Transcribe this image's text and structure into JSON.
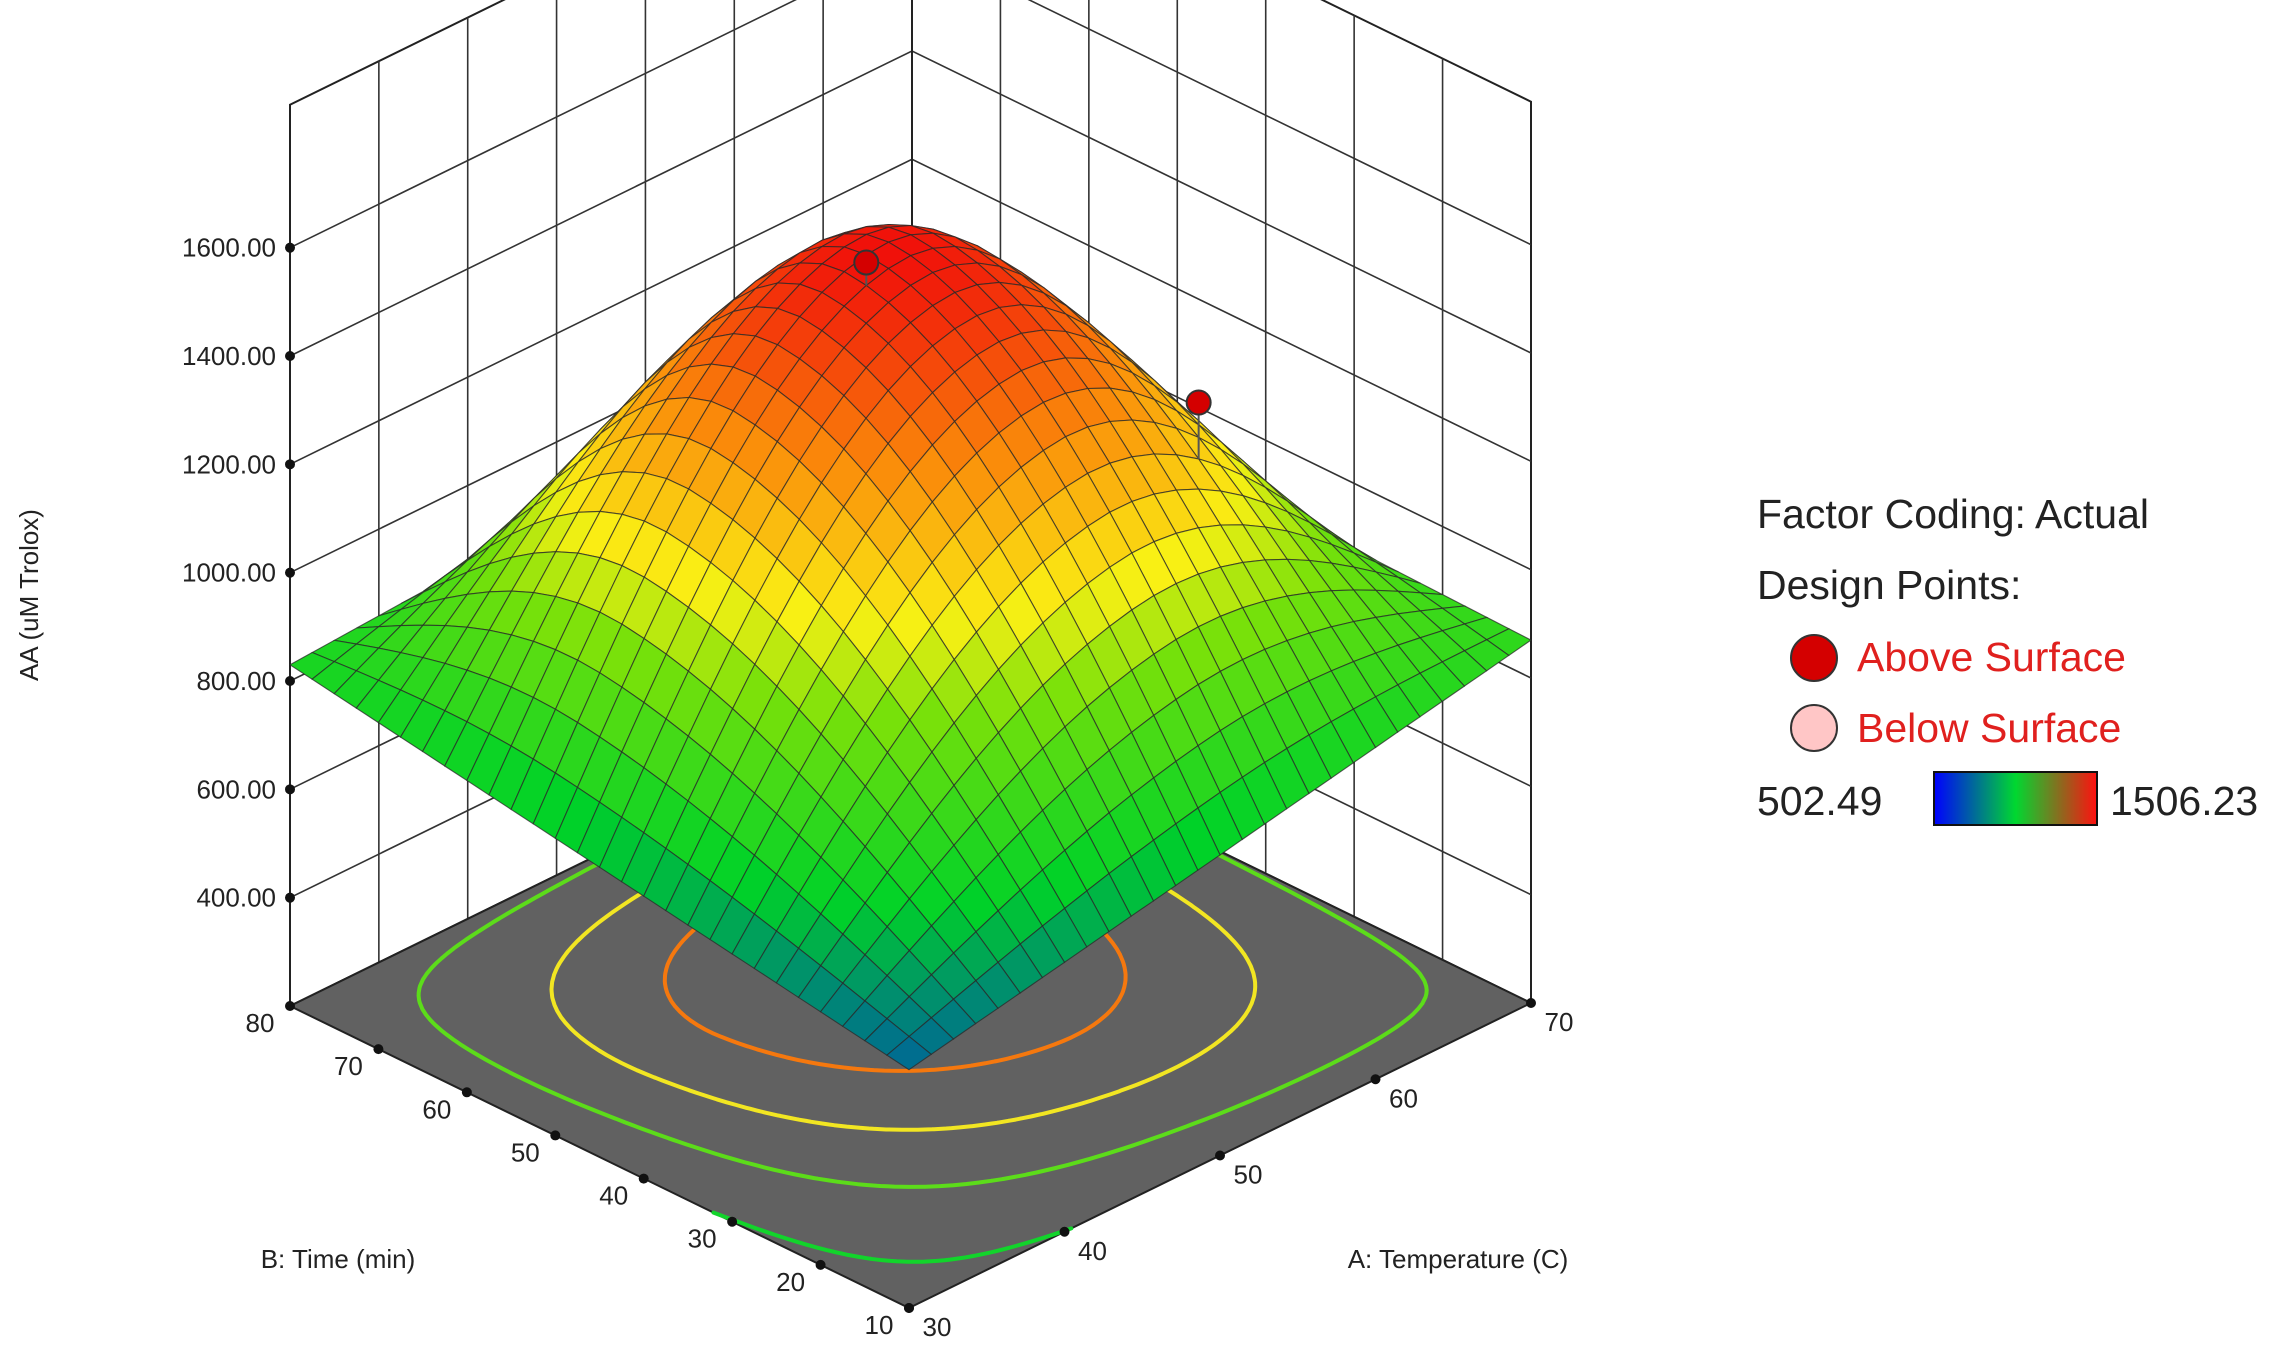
{
  "chart_data": {
    "type": "surface3d",
    "title": "",
    "xlabel": "A: Temperature (C)",
    "ylabel": "B: Time (min)",
    "zlabel": "AA (uM Trolox)",
    "x_range": [
      30,
      70
    ],
    "y_range": [
      10,
      80
    ],
    "z_range": [
      400,
      1600
    ],
    "x_ticks": [
      "30",
      "40",
      "50",
      "60",
      "70"
    ],
    "y_ticks": [
      "10",
      "20",
      "30",
      "40",
      "50",
      "60",
      "70",
      "80"
    ],
    "z_ticks": [
      "400.00",
      "600.00",
      "800.00",
      "1000.00",
      "1200.00",
      "1400.00",
      "1600.00"
    ],
    "surface_corners": [
      {
        "x": 30,
        "y": 10,
        "z": 640
      },
      {
        "x": 70,
        "y": 10,
        "z": 870
      },
      {
        "x": 30,
        "y": 80,
        "z": 830
      },
      {
        "x": 70,
        "y": 80,
        "z": 900
      }
    ],
    "surface_peak": {
      "x": 52,
      "y": 52,
      "z": 1506.23
    },
    "contour_levels": [
      700,
      900,
      1100,
      1300
    ],
    "contour_colors": [
      "#12d42b",
      "#5cdc1a",
      "#f2e622",
      "#f5780e"
    ],
    "design_points": [
      {
        "x": 50,
        "y": 50,
        "z": 1530,
        "position": "above"
      },
      {
        "x": 60,
        "y": 30,
        "z": 1290,
        "position": "above"
      }
    ],
    "colorscale": [
      "#0000ff",
      "#00d830",
      "#ff1010"
    ],
    "floor_color": "#616161",
    "grid": true,
    "legend": {
      "factor_coding": "Factor Coding: Actual",
      "design_points_label": "Design Points:",
      "above_label": "Above Surface",
      "below_label": "Below Surface",
      "above_color": "#d40000",
      "below_color": "#ffc6c6",
      "min_value": "502.49",
      "max_value": "1506.23"
    }
  }
}
